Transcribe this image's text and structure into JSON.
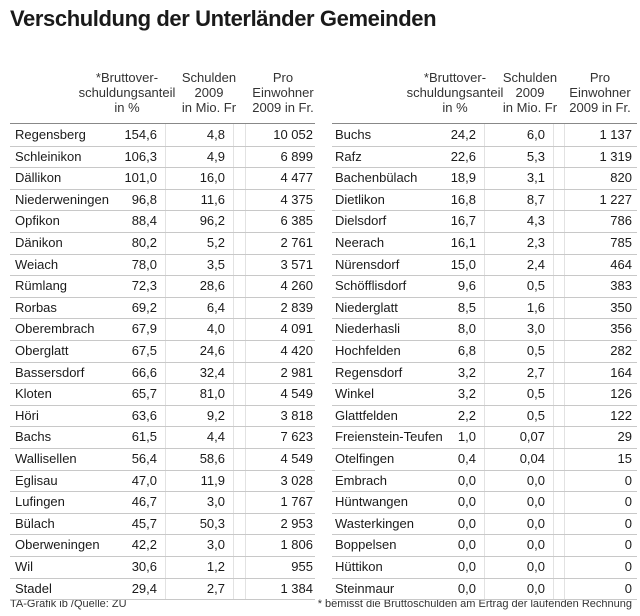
{
  "title": "Verschuldung der Unterländer Gemeinden",
  "tables": [
    {
      "headers": [
        [
          "*Bruttover-",
          "schuldungsanteil",
          "in %"
        ],
        [
          "Schulden",
          "2009",
          "in Mio. Fr"
        ],
        [
          "Pro",
          "Einwohner",
          "2009 in Fr."
        ]
      ],
      "rows": [
        [
          "Regensberg",
          "154,6",
          "4,8",
          "10 052"
        ],
        [
          "Schleinikon",
          "106,3",
          "4,9",
          "6 899"
        ],
        [
          "Dällikon",
          "101,0",
          "16,0",
          "4 477"
        ],
        [
          "Niederweningen",
          "96,8",
          "11,6",
          "4 375"
        ],
        [
          "Opfikon",
          "88,4",
          "96,2",
          "6 385"
        ],
        [
          "Dänikon",
          "80,2",
          "5,2",
          "2 761"
        ],
        [
          "Weiach",
          "78,0",
          "3,5",
          "3 571"
        ],
        [
          "Rümlang",
          "72,3",
          "28,6",
          "4 260"
        ],
        [
          "Rorbas",
          "69,2",
          "6,4",
          "2 839"
        ],
        [
          "Oberembrach",
          "67,9",
          "4,0",
          "4 091"
        ],
        [
          "Oberglatt",
          "67,5",
          "24,6",
          "4 420"
        ],
        [
          "Bassersdorf",
          "66,6",
          "32,4",
          "2 981"
        ],
        [
          "Kloten",
          "65,7",
          "81,0",
          "4 549"
        ],
        [
          "Höri",
          "63,6",
          "9,2",
          "3 818"
        ],
        [
          "Bachs",
          "61,5",
          "4,4",
          "7 623"
        ],
        [
          "Wallisellen",
          "56,4",
          "58,6",
          "4 549"
        ],
        [
          "Eglisau",
          "47,0",
          "11,9",
          "3 028"
        ],
        [
          "Lufingen",
          "46,7",
          "3,0",
          "1 767"
        ],
        [
          "Bülach",
          "45,7",
          "50,3",
          "2 953"
        ],
        [
          "Oberweningen",
          "42,2",
          "3,0",
          "1 806"
        ],
        [
          "Wil",
          "30,6",
          "1,2",
          "955"
        ],
        [
          "Stadel",
          "29,4",
          "2,7",
          "1 384"
        ]
      ]
    },
    {
      "headers": [
        [
          "*Bruttover-",
          "schuldungsanteil",
          "in %"
        ],
        [
          "Schulden",
          "2009",
          "in Mio. Fr"
        ],
        [
          "Pro",
          "Einwohner",
          "2009 in Fr."
        ]
      ],
      "rows": [
        [
          "Buchs",
          "24,2",
          "6,0",
          "1 137"
        ],
        [
          "Rafz",
          "22,6",
          "5,3",
          "1 319"
        ],
        [
          "Bachenbülach",
          "18,9",
          "3,1",
          "820"
        ],
        [
          "Dietlikon",
          "16,8",
          "8,7",
          "1 227"
        ],
        [
          "Dielsdorf",
          "16,7",
          "4,3",
          "786"
        ],
        [
          "Neerach",
          "16,1",
          "2,3",
          "785"
        ],
        [
          "Nürensdorf",
          "15,0",
          "2,4",
          "464"
        ],
        [
          "Schöfflisdorf",
          "9,6",
          "0,5",
          "383"
        ],
        [
          "Niederglatt",
          "8,5",
          "1,6",
          "350"
        ],
        [
          "Niederhasli",
          "8,0",
          "3,0",
          "356"
        ],
        [
          "Hochfelden",
          "6,8",
          "0,5",
          "282"
        ],
        [
          "Regensdorf",
          "3,2",
          "2,7",
          "164"
        ],
        [
          "Winkel",
          "3,2",
          "0,5",
          "126"
        ],
        [
          "Glattfelden",
          "2,2",
          "0,5",
          "122"
        ],
        [
          "Freienstein-Teufen",
          "1,0",
          "0,07",
          "29"
        ],
        [
          "Otelfingen",
          "0,4",
          "0,04",
          "15"
        ],
        [
          "Embrach",
          "0,0",
          "0,0",
          "0"
        ],
        [
          "Hüntwangen",
          "0,0",
          "0,0",
          "0"
        ],
        [
          "Wasterkingen",
          "0,0",
          "0,0",
          "0"
        ],
        [
          "Boppelsen",
          "0,0",
          "0,0",
          "0"
        ],
        [
          "Hüttikon",
          "0,0",
          "0,0",
          "0"
        ],
        [
          "Steinmaur",
          "0,0",
          "0,0",
          "0"
        ]
      ]
    }
  ],
  "footer": {
    "source": "TA-Grafik ib /Quelle: ZU",
    "note": "* bemisst die Bruttoschulden am Ertrag der laufenden Rechnung"
  }
}
